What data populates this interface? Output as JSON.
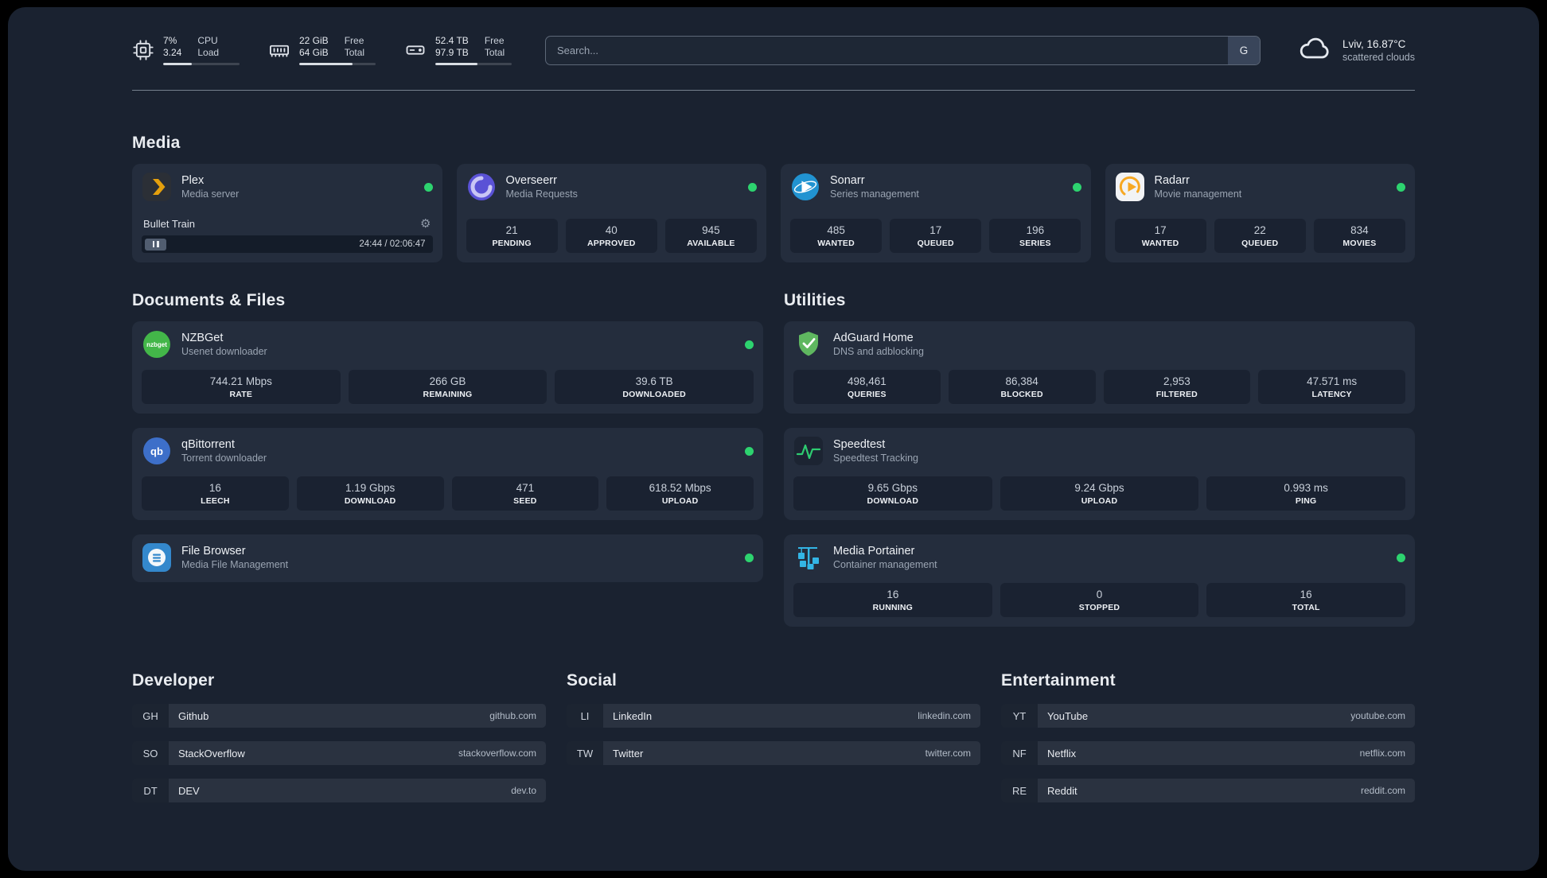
{
  "icons": {
    "gear": "⚙"
  },
  "colors": {
    "status_online": "#2dd36f",
    "accent_amber": "#e5a00d"
  },
  "topbar": {
    "resources": [
      {
        "values": [
          "7%",
          "3.24"
        ],
        "labels": [
          "CPU",
          "Load"
        ],
        "progress": 38
      },
      {
        "values": [
          "22 GiB",
          "64 GiB"
        ],
        "labels": [
          "Free",
          "Total"
        ],
        "progress": 70
      },
      {
        "values": [
          "52.4 TB",
          "97.9 TB"
        ],
        "labels": [
          "Free",
          "Total"
        ],
        "progress": 55
      }
    ],
    "search": {
      "placeholder": "Search...",
      "provider_label": "G"
    },
    "weather": {
      "location": "Lviv, 16.87°C",
      "condition": "scattered clouds"
    }
  },
  "sections": {
    "media": {
      "heading": "Media",
      "cards": {
        "plex": {
          "name": "Plex",
          "desc": "Media server",
          "now_playing": "Bullet Train",
          "time": "24:44 / 02:06:47"
        },
        "overseerr": {
          "name": "Overseerr",
          "desc": "Media Requests",
          "stats": [
            {
              "value": "21",
              "label": "PENDING"
            },
            {
              "value": "40",
              "label": "APPROVED"
            },
            {
              "value": "945",
              "label": "AVAILABLE"
            }
          ]
        },
        "sonarr": {
          "name": "Sonarr",
          "desc": "Series management",
          "stats": [
            {
              "value": "485",
              "label": "WANTED"
            },
            {
              "value": "17",
              "label": "QUEUED"
            },
            {
              "value": "196",
              "label": "SERIES"
            }
          ]
        },
        "radarr": {
          "name": "Radarr",
          "desc": "Movie management",
          "stats": [
            {
              "value": "17",
              "label": "WANTED"
            },
            {
              "value": "22",
              "label": "QUEUED"
            },
            {
              "value": "834",
              "label": "MOVIES"
            }
          ]
        }
      }
    },
    "documents": {
      "heading": "Documents & Files",
      "cards": {
        "nzbget": {
          "name": "NZBGet",
          "desc": "Usenet downloader",
          "stats": [
            {
              "value": "744.21 Mbps",
              "label": "RATE"
            },
            {
              "value": "266 GB",
              "label": "REMAINING"
            },
            {
              "value": "39.6 TB",
              "label": "DOWNLOADED"
            }
          ]
        },
        "qbittorrent": {
          "name": "qBittorrent",
          "desc": "Torrent downloader",
          "stats": [
            {
              "value": "16",
              "label": "LEECH"
            },
            {
              "value": "1.19 Gbps",
              "label": "DOWNLOAD"
            },
            {
              "value": "471",
              "label": "SEED"
            },
            {
              "value": "618.52 Mbps",
              "label": "UPLOAD"
            }
          ]
        },
        "filebrowser": {
          "name": "File Browser",
          "desc": "Media File Management"
        }
      }
    },
    "utilities": {
      "heading": "Utilities",
      "cards": {
        "adguard": {
          "name": "AdGuard Home",
          "desc": "DNS and adblocking",
          "stats": [
            {
              "value": "498,461",
              "label": "QUERIES"
            },
            {
              "value": "86,384",
              "label": "BLOCKED"
            },
            {
              "value": "2,953",
              "label": "FILTERED"
            },
            {
              "value": "47.571 ms",
              "label": "LATENCY"
            }
          ]
        },
        "speedtest": {
          "name": "Speedtest",
          "desc": "Speedtest Tracking",
          "stats": [
            {
              "value": "9.65 Gbps",
              "label": "DOWNLOAD"
            },
            {
              "value": "9.24 Gbps",
              "label": "UPLOAD"
            },
            {
              "value": "0.993 ms",
              "label": "PING"
            }
          ]
        },
        "portainer": {
          "name": "Media Portainer",
          "desc": "Container management",
          "stats": [
            {
              "value": "16",
              "label": "RUNNING"
            },
            {
              "value": "0",
              "label": "STOPPED"
            },
            {
              "value": "16",
              "label": "TOTAL"
            }
          ]
        }
      }
    }
  },
  "bookmarks": [
    {
      "heading": "Developer",
      "items": [
        {
          "abbr": "GH",
          "name": "Github",
          "url": "github.com"
        },
        {
          "abbr": "SO",
          "name": "StackOverflow",
          "url": "stackoverflow.com"
        },
        {
          "abbr": "DT",
          "name": "DEV",
          "url": "dev.to"
        }
      ]
    },
    {
      "heading": "Social",
      "items": [
        {
          "abbr": "LI",
          "name": "LinkedIn",
          "url": "linkedin.com"
        },
        {
          "abbr": "TW",
          "name": "Twitter",
          "url": "twitter.com"
        }
      ]
    },
    {
      "heading": "Entertainment",
      "items": [
        {
          "abbr": "YT",
          "name": "YouTube",
          "url": "youtube.com"
        },
        {
          "abbr": "NF",
          "name": "Netflix",
          "url": "netflix.com"
        },
        {
          "abbr": "RE",
          "name": "Reddit",
          "url": "reddit.com"
        }
      ]
    }
  ]
}
